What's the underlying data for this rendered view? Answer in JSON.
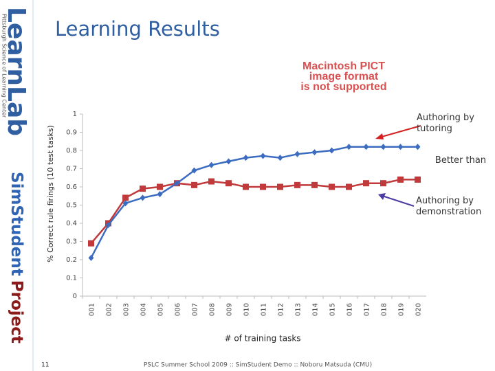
{
  "slide": {
    "title": "Learning Results",
    "logo": "LearnLab",
    "logo_subtitle": "Pittsburgh Science of Learning Center",
    "project_name": [
      "SimStudent",
      "Project"
    ],
    "placeholder": [
      "Macintosh PICT",
      "image format",
      "is not supported"
    ],
    "page_number": "11",
    "footer": "PSLC Summer School 2009 :: SimStudent Demo :: Noboru Matsuda (CMU)"
  },
  "chart_data": {
    "type": "line",
    "x_label": "# of training tasks",
    "y_label": "% Correct rule firings (10 test tasks)",
    "categories": [
      "001",
      "002",
      "003",
      "004",
      "005",
      "006",
      "007",
      "008",
      "009",
      "010",
      "011",
      "012",
      "013",
      "014",
      "015",
      "016",
      "017",
      "018",
      "019",
      "020"
    ],
    "series": [
      {
        "name": "Authoring by tutoring",
        "color": "#3b6cc0",
        "marker": "diamond",
        "values": [
          0.21,
          0.39,
          0.51,
          0.54,
          0.56,
          0.62,
          0.69,
          0.72,
          0.74,
          0.76,
          0.77,
          0.76,
          0.78,
          0.79,
          0.8,
          0.82,
          0.82,
          0.82,
          0.82,
          0.82
        ]
      },
      {
        "name": "Authoring by demonstration",
        "color": "#c0393b",
        "marker": "square",
        "values": [
          0.29,
          0.4,
          0.54,
          0.59,
          0.6,
          0.62,
          0.61,
          0.63,
          0.62,
          0.6,
          0.6,
          0.6,
          0.61,
          0.61,
          0.6,
          0.6,
          0.62,
          0.62,
          0.64,
          0.64
        ]
      }
    ],
    "annotations": [
      "Better than"
    ],
    "ylim": [
      0,
      1
    ],
    "yticks": [
      0,
      0.1,
      0.2,
      0.3,
      0.4,
      0.5,
      0.6,
      0.7,
      0.8,
      0.9,
      1
    ],
    "grid": false
  }
}
